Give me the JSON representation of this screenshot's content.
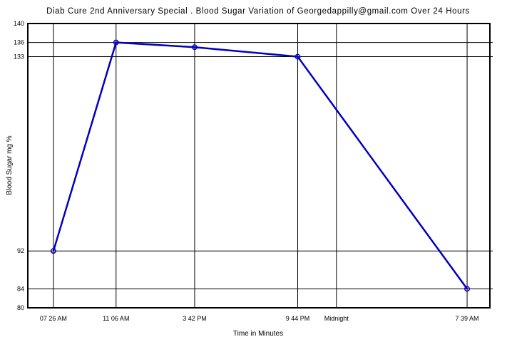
{
  "chart_data": {
    "type": "line",
    "title": "Diab Cure 2nd Anniversary Special . Blood Sugar Variation of Georgedappilly@gmail.com Over 24 Hours",
    "xlabel": "Time in Minutes",
    "ylabel": "Blood Sugar mg %",
    "x_unit": "minutes from midnight of day 1",
    "xlim": [
      356,
      1979
    ],
    "ylim": [
      80,
      140
    ],
    "grid": true,
    "x_ticks": [
      {
        "value": 446,
        "label": "07 26 AM"
      },
      {
        "value": 666,
        "label": "11 06 AM"
      },
      {
        "value": 942,
        "label": "3 42 PM"
      },
      {
        "value": 1304,
        "label": "9 44 PM"
      },
      {
        "value": 1440,
        "label": "Midnight"
      },
      {
        "value": 1899,
        "label": "7 39 AM"
      }
    ],
    "y_ticks": [
      {
        "value": 80,
        "label": "80"
      },
      {
        "value": 84,
        "label": "84"
      },
      {
        "value": 92,
        "label": "92"
      },
      {
        "value": 133,
        "label": "133"
      },
      {
        "value": 136,
        "label": "136"
      },
      {
        "value": 140,
        "label": "140"
      }
    ],
    "series": [
      {
        "color": "#0000c0",
        "x": [
          446,
          666,
          942,
          1304,
          1899
        ],
        "values": [
          92,
          136,
          135,
          133,
          84
        ]
      }
    ]
  }
}
